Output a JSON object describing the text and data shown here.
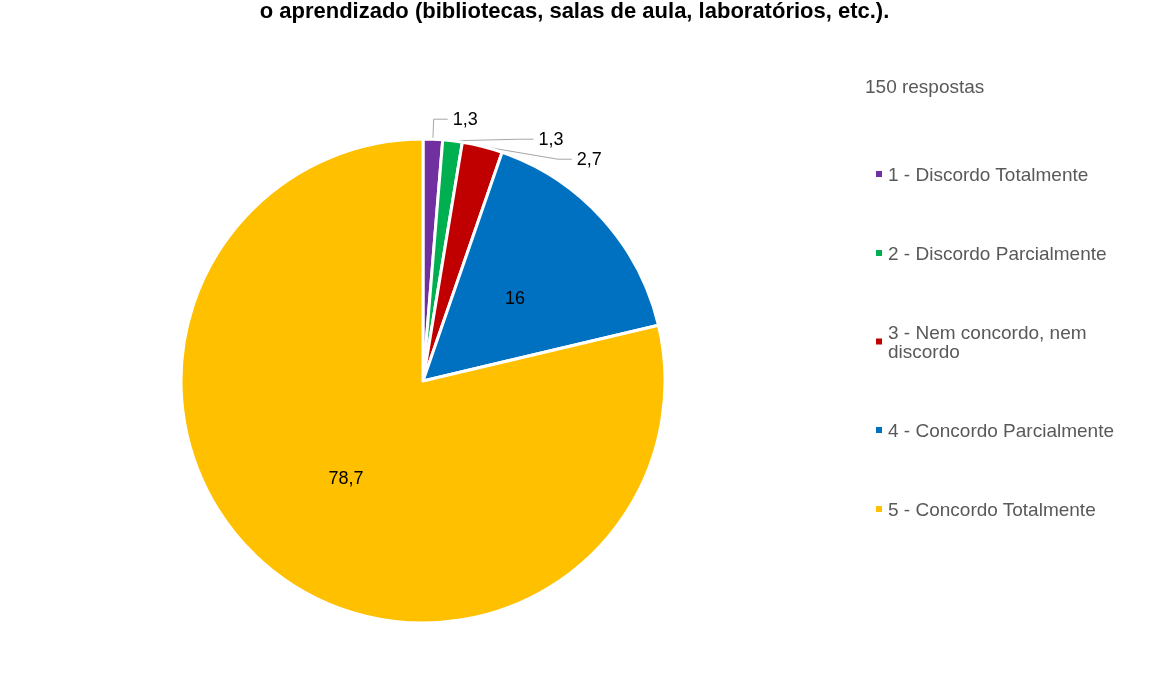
{
  "chart_data": {
    "type": "pie",
    "title": "o aprendizado (bibliotecas, salas de aula, laboratórios, etc.).",
    "subtitle": "150 respostas",
    "categories": [
      "1 - Discordo Totalmente",
      "2 - Discordo Parcialmente",
      "3 - Nem concordo, nem discordo",
      "4 - Concordo Parcialmente",
      "5 - Concordo Totalmente"
    ],
    "values": [
      1.3,
      1.3,
      2.7,
      16,
      78.7
    ],
    "value_labels": [
      "1,3",
      "1,3",
      "2,7",
      "16",
      "78,7"
    ],
    "colors": [
      "#7030a0",
      "#00b050",
      "#c00000",
      "#0070c0",
      "#ffc000"
    ],
    "legend": "right"
  }
}
